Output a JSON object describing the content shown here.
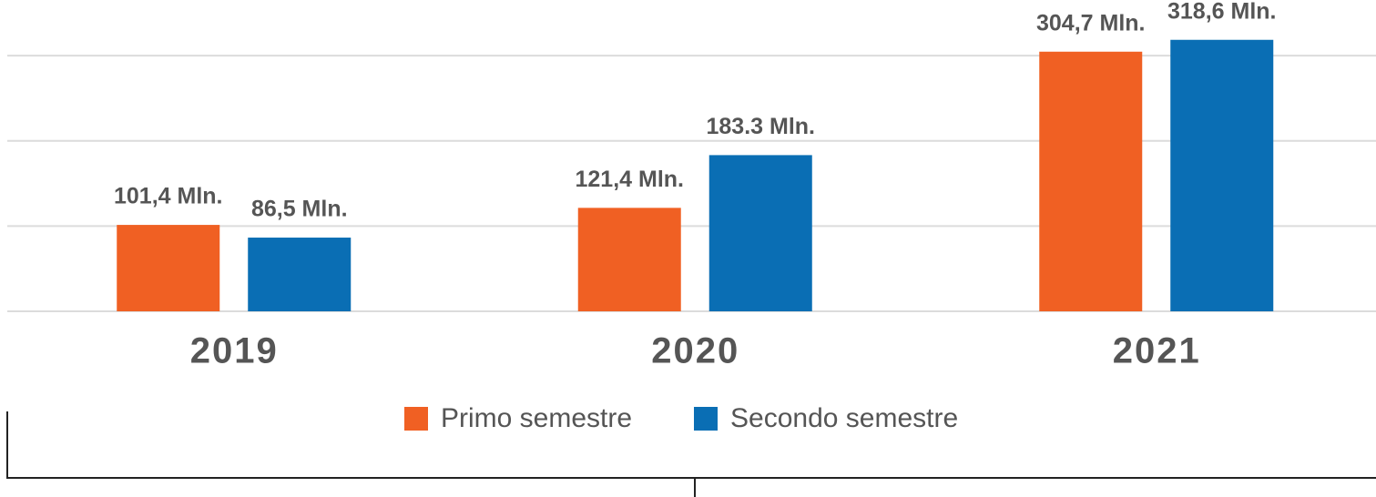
{
  "chart_data": {
    "type": "bar",
    "categories": [
      "2019",
      "2020",
      "2021"
    ],
    "series": [
      {
        "name": "Primo semestre",
        "color": "#f06023",
        "values": [
          101.4,
          121.4,
          304.7
        ],
        "value_labels": [
          "101,4 Mln.",
          "121,4 Mln.",
          "304,7 Mln."
        ]
      },
      {
        "name": "Secondo semestre",
        "color": "#0a6eb4",
        "values": [
          86.5,
          183.3,
          318.6
        ],
        "value_labels": [
          "86,5 Mln.",
          "183.3 Mln.",
          "318,6 Mln."
        ]
      }
    ],
    "ylim": [
      0,
      360
    ],
    "yticks": [
      0,
      100,
      200,
      300
    ],
    "grid": true,
    "legend": "bottom"
  }
}
